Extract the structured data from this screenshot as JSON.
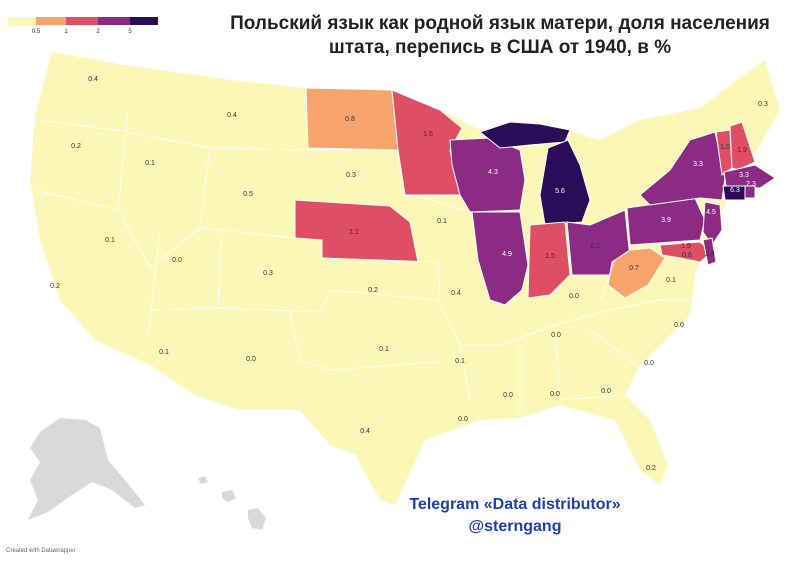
{
  "title_line1": "Польский язык как родной язык матери, доля населения",
  "title_line2": "штата, перепись в США от 1940, в %",
  "legend": {
    "ticks": [
      "0.5",
      "1",
      "2",
      "5"
    ],
    "colors": [
      "#fbf7b6",
      "#f7a36c",
      "#de4f66",
      "#8b2b83",
      "#2b0c58"
    ]
  },
  "watermark_line1": "Telegram «Data distributor»",
  "watermark_line2": "@sterngang",
  "credit": "Created with Datawrapper",
  "colors": {
    "land": "#fbf7b6",
    "alaska": "#d9d9d9",
    "border": "#ffffff"
  },
  "states": [
    {
      "id": "WA",
      "value": "0.4"
    },
    {
      "id": "OR",
      "value": "0.2"
    },
    {
      "id": "CA",
      "value": "0.2"
    },
    {
      "id": "NV",
      "value": "0.1"
    },
    {
      "id": "ID",
      "value": "0.1"
    },
    {
      "id": "MT",
      "value": "0.4"
    },
    {
      "id": "WY",
      "value": "0.5"
    },
    {
      "id": "UT",
      "value": "0.0"
    },
    {
      "id": "AZ",
      "value": "0.1"
    },
    {
      "id": "CO",
      "value": "0.3"
    },
    {
      "id": "NM",
      "value": "0.0"
    },
    {
      "id": "ND",
      "value": "0.8"
    },
    {
      "id": "SD",
      "value": "0.3"
    },
    {
      "id": "NE",
      "value": "1.1"
    },
    {
      "id": "KS",
      "value": "0.2"
    },
    {
      "id": "OK",
      "value": "0.1"
    },
    {
      "id": "TX",
      "value": "0.4"
    },
    {
      "id": "MN",
      "value": "1.5"
    },
    {
      "id": "IA",
      "value": "0.1"
    },
    {
      "id": "MO",
      "value": "0.4"
    },
    {
      "id": "AR",
      "value": "0.1"
    },
    {
      "id": "LA",
      "value": "0.0"
    },
    {
      "id": "WI",
      "value": "4.3"
    },
    {
      "id": "IL",
      "value": "4.9"
    },
    {
      "id": "MI",
      "value": "5.6"
    },
    {
      "id": "IN",
      "value": "1.5"
    },
    {
      "id": "OH",
      "value": "2.1"
    },
    {
      "id": "KY",
      "value": "0.0"
    },
    {
      "id": "TN",
      "value": "0.0"
    },
    {
      "id": "MS",
      "value": "0.0"
    },
    {
      "id": "AL",
      "value": "0.0"
    },
    {
      "id": "GA",
      "value": "0.0"
    },
    {
      "id": "FL",
      "value": "0.2"
    },
    {
      "id": "SC",
      "value": "0.0"
    },
    {
      "id": "NC",
      "value": "0.0"
    },
    {
      "id": "VA",
      "value": "0.1"
    },
    {
      "id": "WV",
      "value": "0.7"
    },
    {
      "id": "PA",
      "value": "3.9"
    },
    {
      "id": "NY",
      "value": "3.3"
    },
    {
      "id": "NJ",
      "value": "4.5"
    },
    {
      "id": "DE",
      "value": "1.9"
    },
    {
      "id": "MD",
      "value": "0.6"
    },
    {
      "id": "DC",
      "value": "3.4"
    },
    {
      "id": "CT",
      "value": "6.3"
    },
    {
      "id": "RI",
      "value": "2.3"
    },
    {
      "id": "MA",
      "value": "3.3"
    },
    {
      "id": "VT",
      "value": "1.0"
    },
    {
      "id": "NH",
      "value": "1.9"
    },
    {
      "id": "ME",
      "value": "0.3"
    }
  ]
}
